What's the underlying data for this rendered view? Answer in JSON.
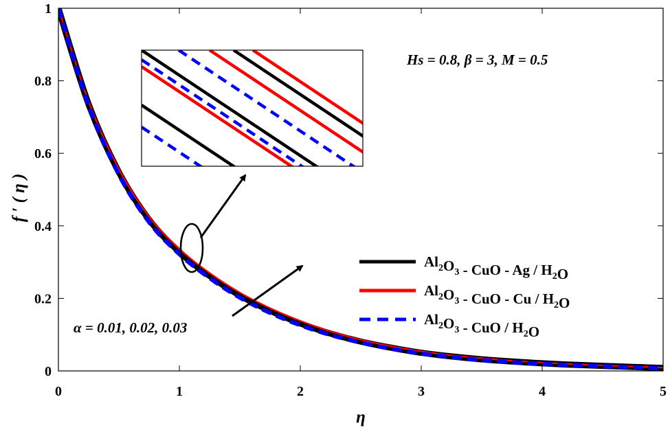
{
  "chart_data": {
    "type": "line",
    "xlabel": "η",
    "ylabel": "f ′ ( η )",
    "xlim": [
      0,
      5
    ],
    "ylim": [
      0,
      1
    ],
    "xticks": [
      "0",
      "1",
      "2",
      "3",
      "4",
      "5"
    ],
    "yticks": [
      "0",
      "0.2",
      "0.4",
      "0.6",
      "0.8",
      "1"
    ],
    "grid": false,
    "legend_position": "right",
    "parameters_text": "Hs = 0.8, β = 3, M = 0.5",
    "alpha_text": "α = 0.01, 0.02, 0.03",
    "x": [
      0,
      0.25,
      0.5,
      0.75,
      1,
      1.25,
      1.5,
      1.75,
      2,
      2.25,
      2.5,
      2.75,
      3,
      3.25,
      3.5,
      3.75,
      4,
      4.25,
      4.5,
      4.75,
      5
    ],
    "series": [
      {
        "name": "Al2O3 - CuO - Ag / H2O",
        "name_parts": [
          [
            "Al",
            ""
          ],
          [
            "2",
            "sub"
          ],
          [
            "O",
            ""
          ],
          [
            "3",
            "sub"
          ],
          [
            " - CuO - Ag / H",
            ""
          ],
          [
            "2",
            "sub"
          ],
          [
            "O",
            ""
          ]
        ],
        "color": "#000000",
        "style": "solid",
        "values": [
          1,
          0.735,
          0.548,
          0.417,
          0.328,
          0.262,
          0.208,
          0.166,
          0.131,
          0.103,
          0.081,
          0.064,
          0.05,
          0.04,
          0.032,
          0.026,
          0.021,
          0.017,
          0.014,
          0.011,
          0.008
        ]
      },
      {
        "name": "Al2O3 - CuO - Cu / H2O",
        "name_parts": [
          [
            "Al",
            ""
          ],
          [
            "2",
            "sub"
          ],
          [
            "O",
            ""
          ],
          [
            "3",
            "sub"
          ],
          [
            " - CuO - Cu / H",
            ""
          ],
          [
            "2",
            "sub"
          ],
          [
            "O",
            ""
          ]
        ],
        "color": "#ff0000",
        "style": "solid",
        "values": [
          1,
          0.742,
          0.556,
          0.425,
          0.336,
          0.27,
          0.216,
          0.173,
          0.138,
          0.109,
          0.086,
          0.068,
          0.054,
          0.043,
          0.035,
          0.028,
          0.023,
          0.019,
          0.015,
          0.012,
          0.009
        ]
      },
      {
        "name": "Al2O3 - CuO / H2O",
        "name_parts": [
          [
            "Al",
            ""
          ],
          [
            "2",
            "sub"
          ],
          [
            "O",
            ""
          ],
          [
            "3",
            "sub"
          ],
          [
            " - CuO / H",
            ""
          ],
          [
            "2",
            "sub"
          ],
          [
            "O",
            ""
          ]
        ],
        "color": "#0000ff",
        "style": "dashed",
        "values": [
          1,
          0.73,
          0.541,
          0.41,
          0.322,
          0.256,
          0.202,
          0.16,
          0.126,
          0.099,
          0.078,
          0.061,
          0.048,
          0.038,
          0.03,
          0.024,
          0.019,
          0.016,
          0.013,
          0.01,
          0.007
        ]
      }
    ]
  }
}
